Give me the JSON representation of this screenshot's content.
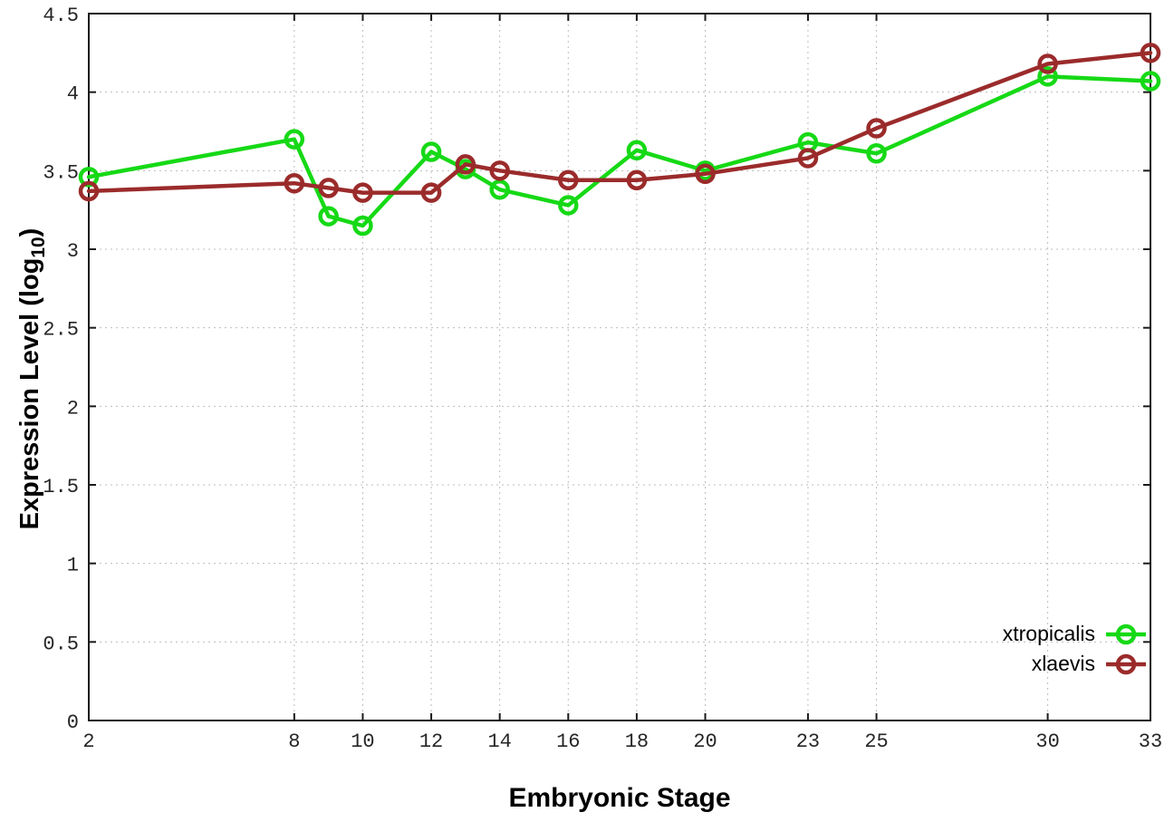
{
  "chart_data": {
    "type": "line",
    "title": "",
    "xlabel": "Embryonic Stage",
    "ylabel": "Expression Level (log10)",
    "ylabel_pre": "Expression Level (log",
    "ylabel_sub": "10",
    "ylabel_post": ")",
    "x": [
      2,
      8,
      9,
      10,
      12,
      13,
      14,
      16,
      18,
      20,
      23,
      25,
      30,
      33
    ],
    "series": [
      {
        "name": "xtropicalis",
        "color": "#16d916",
        "values": [
          3.46,
          3.7,
          3.21,
          3.15,
          3.62,
          3.51,
          3.38,
          3.28,
          3.63,
          3.5,
          3.68,
          3.61,
          4.1,
          4.07
        ]
      },
      {
        "name": "xlaevis",
        "color": "#9b2b2b",
        "values": [
          3.37,
          3.42,
          3.39,
          3.36,
          3.36,
          3.54,
          3.5,
          3.44,
          3.44,
          3.48,
          3.58,
          3.77,
          4.18,
          4.25
        ]
      }
    ],
    "xlim": [
      2,
      33
    ],
    "ylim": [
      0,
      4.5
    ],
    "xticks": [
      2,
      8,
      10,
      12,
      14,
      16,
      18,
      20,
      23,
      25,
      30,
      33
    ],
    "yticks": [
      0,
      0.5,
      1,
      1.5,
      2,
      2.5,
      3,
      3.5,
      4,
      4.5
    ],
    "grid": true,
    "legend_position": "bottom-right",
    "colors": {
      "axis": "#1a1a1a",
      "grid": "#bdbdbd",
      "tick_label": "#262626"
    }
  }
}
